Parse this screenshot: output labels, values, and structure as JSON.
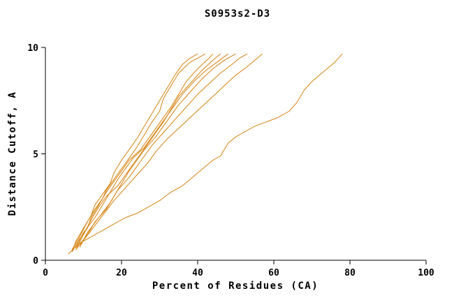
{
  "page": {
    "background": "#ffffff",
    "text_color": "#000000"
  },
  "chart_data": {
    "type": "line",
    "title": "S0953s2-D3",
    "xlabel": "Percent of Residues (CA)",
    "ylabel": "Distance Cutoff, A",
    "xlim": [
      0,
      100
    ],
    "ylim": [
      0,
      10
    ],
    "x_ticks": [
      0,
      20,
      40,
      60,
      80,
      100
    ],
    "y_ticks": [
      0,
      5,
      10
    ],
    "grid": false,
    "legend": "none",
    "line_color": "#d4820f",
    "axis_color": "#000000",
    "series": [
      {
        "name": "curve-1",
        "points": [
          [
            7,
            0.4
          ],
          [
            8,
            0.9
          ],
          [
            10,
            1.5
          ],
          [
            12,
            2.1
          ],
          [
            13,
            2.6
          ],
          [
            15,
            3.1
          ],
          [
            17,
            3.6
          ],
          [
            18,
            4.1
          ],
          [
            20,
            4.7
          ],
          [
            22,
            5.2
          ],
          [
            24,
            5.7
          ],
          [
            26,
            6.3
          ],
          [
            28,
            6.9
          ],
          [
            30,
            7.5
          ],
          [
            32,
            8.1
          ],
          [
            34,
            8.7
          ],
          [
            36,
            9.2
          ],
          [
            38,
            9.5
          ],
          [
            40,
            9.7
          ]
        ]
      },
      {
        "name": "curve-2",
        "points": [
          [
            7,
            0.5
          ],
          [
            9,
            1.1
          ],
          [
            11,
            1.8
          ],
          [
            13,
            2.4
          ],
          [
            15,
            2.9
          ],
          [
            16,
            3.3
          ],
          [
            18,
            3.8
          ],
          [
            20,
            4.3
          ],
          [
            22,
            4.8
          ],
          [
            24,
            5.3
          ],
          [
            26,
            5.9
          ],
          [
            28,
            6.5
          ],
          [
            30,
            7.0
          ],
          [
            31,
            7.6
          ],
          [
            33,
            8.2
          ],
          [
            35,
            8.8
          ],
          [
            38,
            9.3
          ],
          [
            40,
            9.5
          ],
          [
            42,
            9.7
          ]
        ]
      },
      {
        "name": "curve-3",
        "points": [
          [
            7,
            0.4
          ],
          [
            9,
            1.0
          ],
          [
            11,
            1.5
          ],
          [
            12,
            2.0
          ],
          [
            14,
            2.6
          ],
          [
            16,
            3.2
          ],
          [
            18,
            3.7
          ],
          [
            20,
            4.2
          ],
          [
            22,
            4.7
          ],
          [
            25,
            5.2
          ],
          [
            27,
            5.7
          ],
          [
            29,
            6.2
          ],
          [
            31,
            6.7
          ],
          [
            33,
            7.2
          ],
          [
            35,
            7.8
          ],
          [
            37,
            8.4
          ],
          [
            40,
            9.0
          ],
          [
            43,
            9.5
          ],
          [
            44,
            9.7
          ]
        ]
      },
      {
        "name": "curve-4",
        "points": [
          [
            8,
            0.5
          ],
          [
            10,
            1.2
          ],
          [
            12,
            1.9
          ],
          [
            14,
            2.5
          ],
          [
            16,
            3.0
          ],
          [
            19,
            3.5
          ],
          [
            21,
            4.0
          ],
          [
            23,
            4.5
          ],
          [
            25,
            5.0
          ],
          [
            27,
            5.5
          ],
          [
            29,
            6.0
          ],
          [
            31,
            6.5
          ],
          [
            33,
            7.1
          ],
          [
            35,
            7.7
          ],
          [
            38,
            8.3
          ],
          [
            41,
            8.9
          ],
          [
            44,
            9.4
          ],
          [
            46,
            9.7
          ]
        ]
      },
      {
        "name": "curve-5",
        "points": [
          [
            8,
            0.6
          ],
          [
            10,
            1.3
          ],
          [
            13,
            2.0
          ],
          [
            15,
            2.6
          ],
          [
            17,
            3.2
          ],
          [
            19,
            3.8
          ],
          [
            21,
            4.3
          ],
          [
            23,
            4.8
          ],
          [
            26,
            5.3
          ],
          [
            28,
            5.8
          ],
          [
            30,
            6.3
          ],
          [
            32,
            6.8
          ],
          [
            34,
            7.3
          ],
          [
            36,
            7.8
          ],
          [
            39,
            8.4
          ],
          [
            42,
            8.9
          ],
          [
            45,
            9.3
          ],
          [
            48,
            9.7
          ]
        ]
      },
      {
        "name": "curve-6",
        "points": [
          [
            8,
            0.5
          ],
          [
            11,
            1.2
          ],
          [
            13,
            1.8
          ],
          [
            16,
            2.4
          ],
          [
            18,
            3.0
          ],
          [
            20,
            3.6
          ],
          [
            22,
            4.2
          ],
          [
            24,
            4.7
          ],
          [
            26,
            5.2
          ],
          [
            29,
            5.8
          ],
          [
            31,
            6.3
          ],
          [
            33,
            6.8
          ],
          [
            35,
            7.3
          ],
          [
            38,
            7.9
          ],
          [
            41,
            8.5
          ],
          [
            44,
            9.0
          ],
          [
            47,
            9.4
          ],
          [
            50,
            9.7
          ]
        ]
      },
      {
        "name": "curve-7",
        "points": [
          [
            9,
            0.6
          ],
          [
            11,
            1.3
          ],
          [
            14,
            2.0
          ],
          [
            17,
            2.7
          ],
          [
            19,
            3.3
          ],
          [
            22,
            3.9
          ],
          [
            24,
            4.4
          ],
          [
            26,
            4.9
          ],
          [
            28,
            5.4
          ],
          [
            31,
            6.0
          ],
          [
            34,
            6.6
          ],
          [
            37,
            7.2
          ],
          [
            40,
            7.8
          ],
          [
            43,
            8.3
          ],
          [
            46,
            8.8
          ],
          [
            49,
            9.2
          ],
          [
            51,
            9.5
          ],
          [
            53,
            9.7
          ]
        ]
      },
      {
        "name": "curve-8",
        "points": [
          [
            9,
            0.7
          ],
          [
            12,
            1.4
          ],
          [
            15,
            2.1
          ],
          [
            18,
            2.8
          ],
          [
            21,
            3.4
          ],
          [
            24,
            4.0
          ],
          [
            27,
            4.6
          ],
          [
            29,
            5.1
          ],
          [
            32,
            5.7
          ],
          [
            35,
            6.2
          ],
          [
            38,
            6.7
          ],
          [
            41,
            7.2
          ],
          [
            44,
            7.7
          ],
          [
            47,
            8.2
          ],
          [
            50,
            8.7
          ],
          [
            53,
            9.1
          ],
          [
            55,
            9.4
          ],
          [
            57,
            9.7
          ]
        ]
      },
      {
        "name": "curve-9",
        "points": [
          [
            6,
            0.3
          ],
          [
            9,
            0.8
          ],
          [
            12,
            1.1
          ],
          [
            15,
            1.4
          ],
          [
            18,
            1.7
          ],
          [
            21,
            2.0
          ],
          [
            24,
            2.2
          ],
          [
            27,
            2.5
          ],
          [
            30,
            2.8
          ],
          [
            33,
            3.2
          ],
          [
            36,
            3.5
          ],
          [
            38,
            3.8
          ],
          [
            40,
            4.1
          ],
          [
            42,
            4.4
          ],
          [
            44,
            4.7
          ],
          [
            46,
            4.9
          ],
          [
            47,
            5.2
          ],
          [
            48,
            5.5
          ],
          [
            50,
            5.8
          ],
          [
            53,
            6.1
          ],
          [
            55,
            6.3
          ],
          [
            58,
            6.5
          ],
          [
            61,
            6.7
          ],
          [
            64,
            7.0
          ],
          [
            66,
            7.4
          ],
          [
            67,
            7.7
          ],
          [
            68,
            8.0
          ],
          [
            70,
            8.4
          ],
          [
            72,
            8.7
          ],
          [
            74,
            9.0
          ],
          [
            76,
            9.3
          ],
          [
            78,
            9.7
          ]
        ]
      }
    ]
  }
}
